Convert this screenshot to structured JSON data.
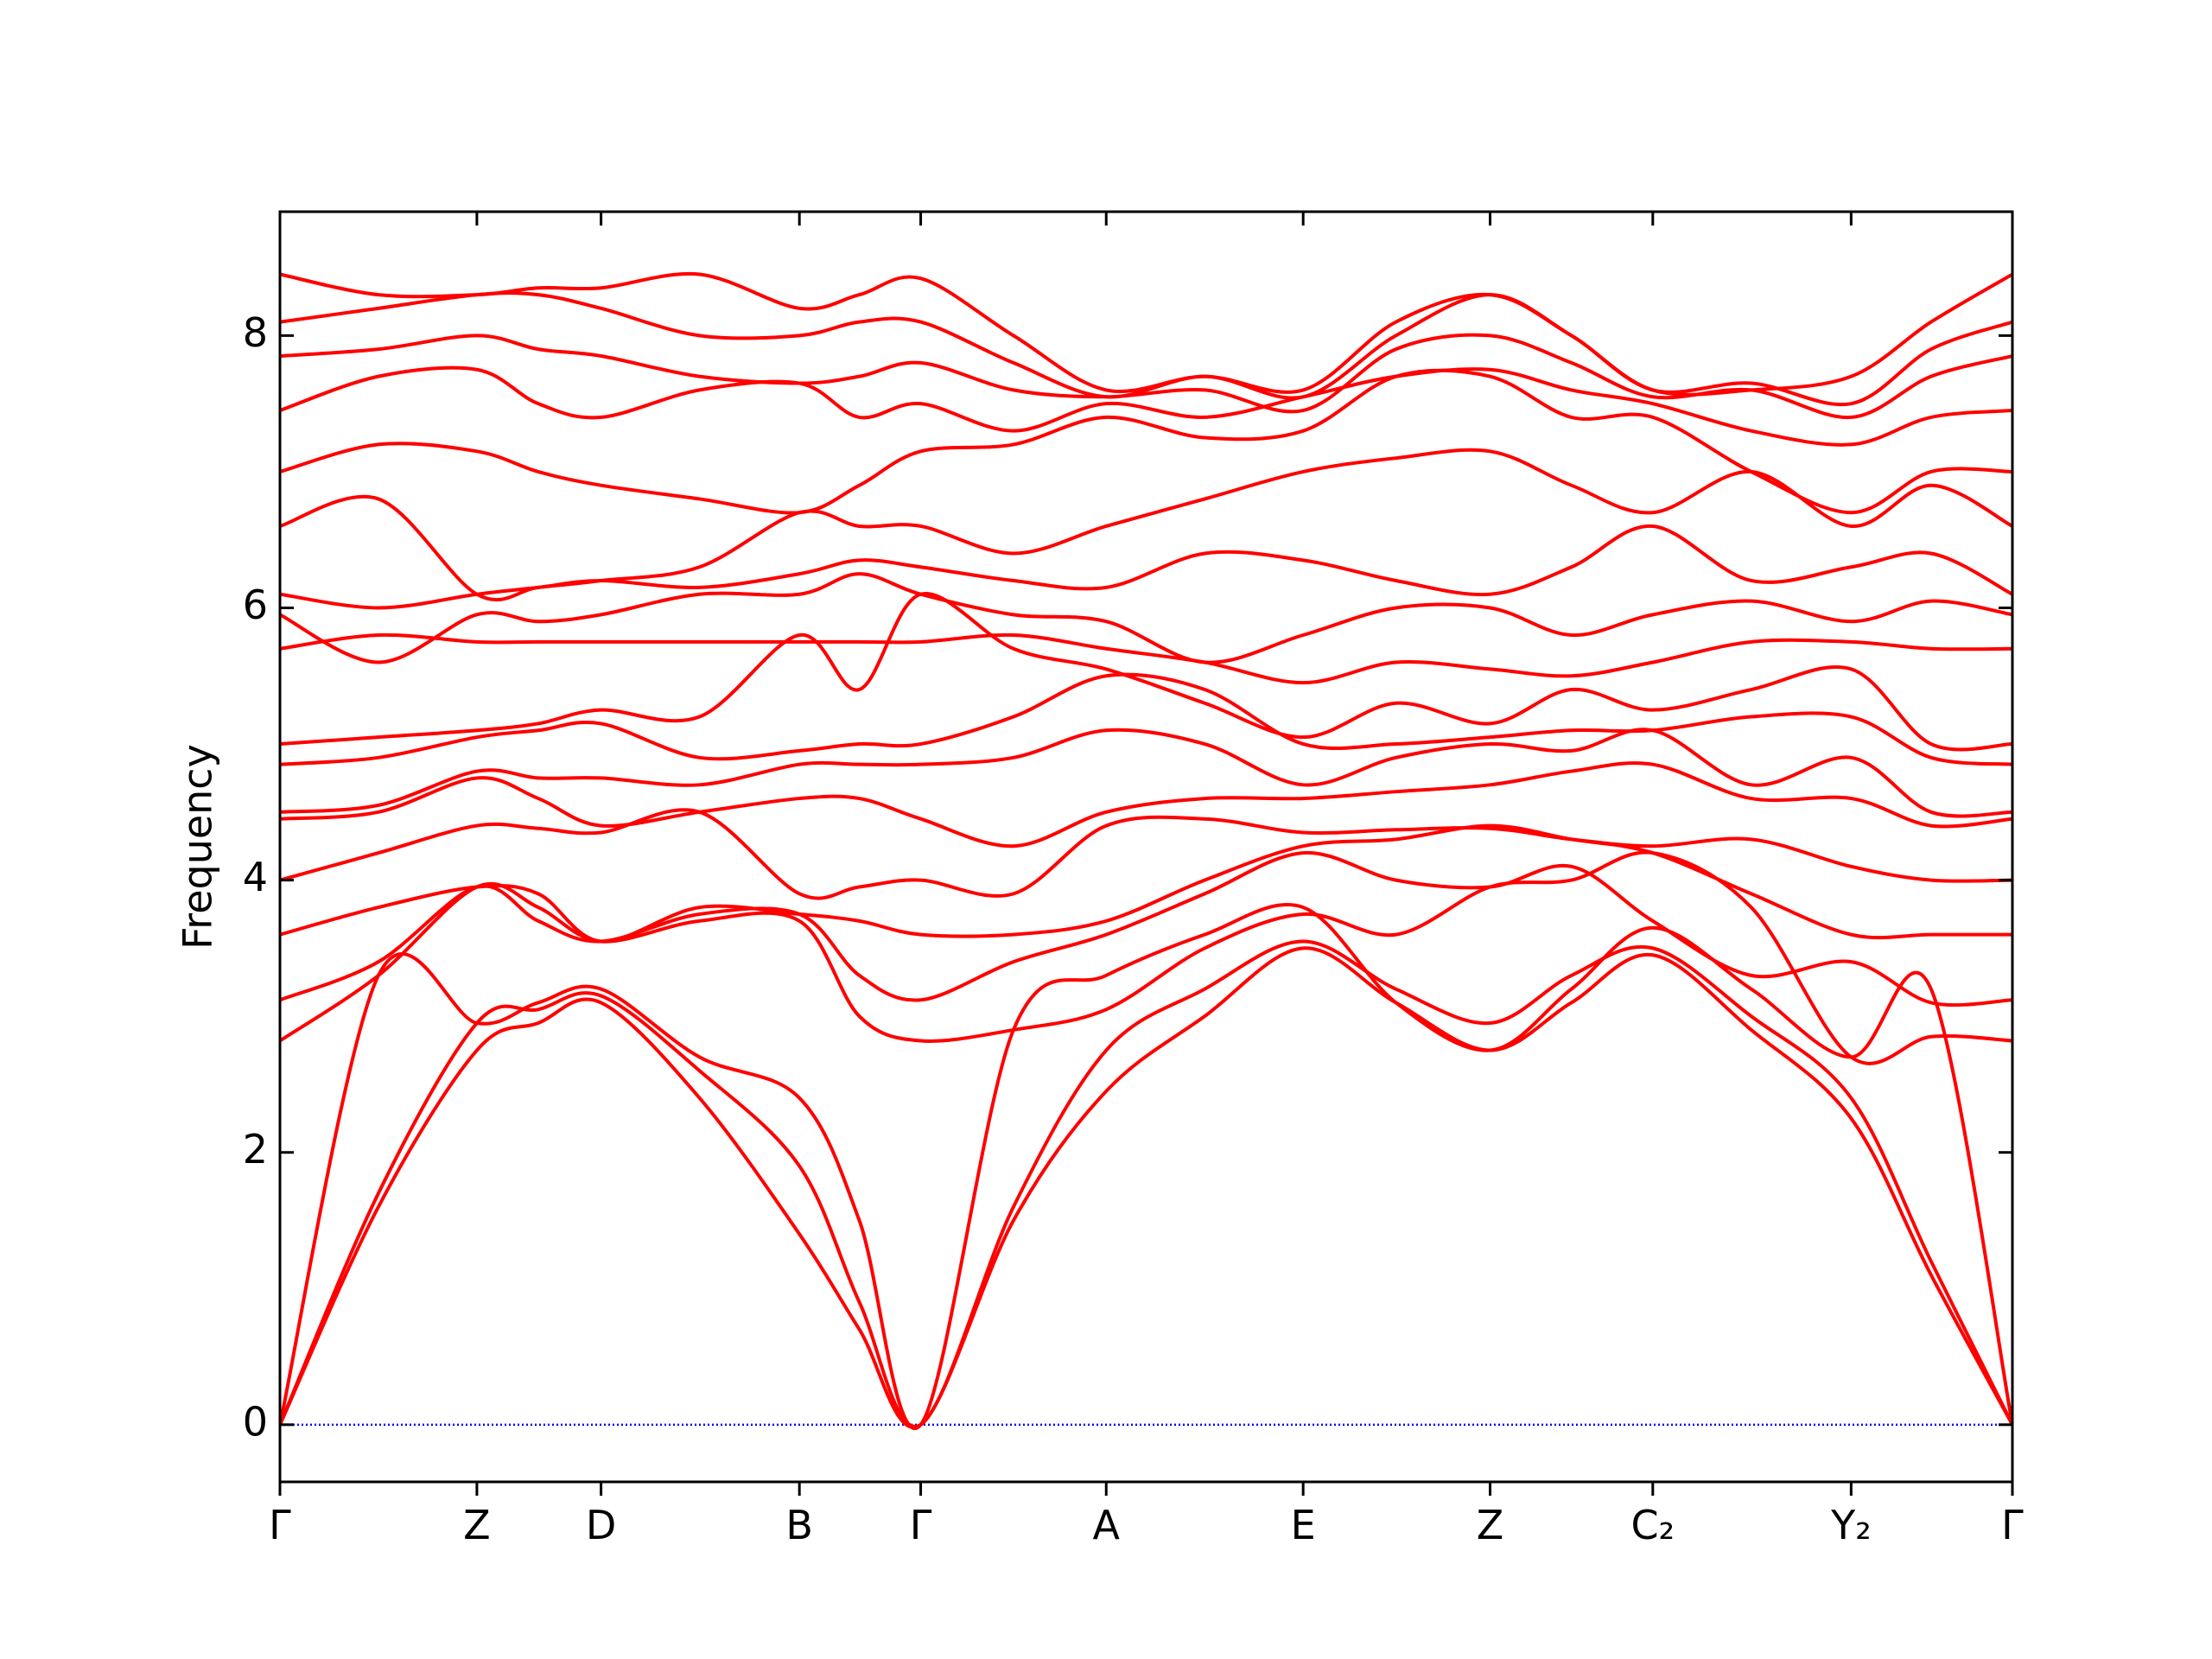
{
  "chart_data": {
    "type": "line",
    "ylabel": "Frequency",
    "color": "#ff0000",
    "legend": false,
    "grid": false,
    "hline": {
      "y": 0,
      "color": "#0000ff",
      "style": "dotted"
    },
    "xlim": [
      0,
      12.14
    ],
    "ylim": [
      -0.42,
      8.91
    ],
    "xticks": [
      {
        "value": 0,
        "label": "Γ"
      },
      {
        "value": 1.38,
        "label": "Z"
      },
      {
        "value": 2.25,
        "label": "D"
      },
      {
        "value": 3.64,
        "label": "B"
      },
      {
        "value": 4.49,
        "label": "Γ"
      },
      {
        "value": 5.79,
        "label": "A"
      },
      {
        "value": 7.17,
        "label": "E"
      },
      {
        "value": 8.48,
        "label": "Z"
      },
      {
        "value": 9.62,
        "label": "C₂"
      },
      {
        "value": 11.01,
        "label": "Y₂"
      },
      {
        "value": 12.14,
        "label": "Γ"
      }
    ],
    "yticks": [
      0,
      2,
      4,
      6,
      8
    ],
    "x": [
      0,
      0.69,
      1.38,
      1.81,
      2.25,
      2.94,
      3.64,
      4.06,
      4.49,
      5.14,
      5.79,
      6.48,
      7.17,
      7.82,
      8.48,
      9.05,
      9.62,
      10.31,
      11.01,
      11.57,
      12.14
    ],
    "series": [
      {
        "values": [
          0,
          1.6,
          2.75,
          2.95,
          3.1,
          2.4,
          1.4,
          0.7,
          0,
          1.5,
          2.45,
          3.0,
          3.5,
          3.1,
          2.75,
          3.1,
          3.45,
          2.9,
          2.25,
          1.1,
          0
        ]
      },
      {
        "values": [
          0,
          1.7,
          2.95,
          3.05,
          3.15,
          2.6,
          1.9,
          0.9,
          0,
          1.6,
          2.75,
          3.2,
          3.55,
          3.2,
          2.95,
          3.3,
          3.5,
          3.0,
          2.4,
          1.2,
          0
        ]
      },
      {
        "values": [
          0,
          3.3,
          2.95,
          3.1,
          3.2,
          2.7,
          2.4,
          1.5,
          0,
          2.9,
          3.3,
          3.6,
          3.8,
          3.1,
          2.75,
          3.2,
          3.65,
          3.2,
          2.7,
          3.2,
          0
        ]
      },
      {
        "values": [
          2.82,
          3.3,
          3.95,
          3.8,
          3.55,
          3.7,
          3.7,
          3.0,
          2.82,
          2.9,
          3.05,
          3.5,
          3.75,
          3.6,
          3.95,
          4.0,
          4.2,
          3.8,
          2.7,
          2.85,
          2.82
        ]
      },
      {
        "values": [
          3.12,
          3.4,
          3.95,
          3.7,
          3.55,
          3.75,
          3.75,
          3.3,
          3.12,
          3.4,
          3.6,
          3.9,
          4.2,
          4.0,
          3.95,
          4.1,
          3.7,
          3.3,
          3.4,
          3.1,
          3.12
        ]
      },
      {
        "values": [
          3.6,
          3.8,
          3.95,
          3.9,
          3.55,
          3.8,
          3.75,
          3.7,
          3.6,
          3.6,
          3.7,
          4.0,
          4.25,
          4.3,
          4.4,
          4.3,
          4.2,
          3.9,
          3.6,
          3.6,
          3.6
        ]
      },
      {
        "values": [
          4.0,
          4.2,
          4.4,
          4.38,
          4.35,
          4.5,
          3.9,
          3.95,
          4.0,
          3.9,
          4.4,
          4.45,
          4.35,
          4.37,
          4.38,
          4.3,
          4.25,
          4.3,
          4.1,
          4.0,
          4.0
        ]
      },
      {
        "values": [
          4.45,
          4.5,
          4.75,
          4.6,
          4.4,
          4.5,
          4.6,
          4.6,
          4.45,
          4.25,
          4.5,
          4.6,
          4.6,
          4.65,
          4.7,
          4.8,
          4.85,
          4.6,
          4.6,
          4.4,
          4.45
        ]
      },
      {
        "values": [
          4.5,
          4.55,
          4.8,
          4.75,
          4.75,
          4.7,
          4.85,
          4.85,
          4.85,
          4.9,
          5.1,
          5.0,
          4.7,
          4.9,
          5.0,
          4.95,
          5.1,
          4.7,
          4.9,
          4.5,
          4.5
        ]
      },
      {
        "values": [
          4.85,
          4.9,
          5.05,
          5.1,
          5.15,
          4.9,
          4.95,
          5.0,
          5.0,
          5.2,
          5.5,
          5.4,
          5.0,
          5.0,
          5.05,
          5.1,
          5.1,
          5.2,
          5.2,
          4.9,
          4.85
        ]
      },
      {
        "values": [
          5.0,
          5.05,
          5.1,
          5.15,
          5.25,
          5.2,
          5.8,
          5.4,
          6.1,
          5.7,
          5.55,
          5.3,
          5.05,
          5.3,
          5.15,
          5.4,
          5.25,
          5.4,
          5.55,
          5.0,
          5.0
        ]
      },
      {
        "values": [
          5.7,
          5.8,
          5.75,
          5.75,
          5.75,
          5.75,
          5.75,
          5.75,
          5.75,
          5.8,
          5.7,
          5.6,
          5.45,
          5.6,
          5.55,
          5.5,
          5.6,
          5.75,
          5.75,
          5.7,
          5.7
        ]
      },
      {
        "values": [
          5.95,
          5.6,
          5.95,
          5.9,
          5.95,
          6.1,
          6.1,
          6.25,
          6.1,
          5.95,
          5.9,
          5.6,
          5.8,
          6.0,
          6.0,
          5.8,
          5.95,
          6.05,
          5.9,
          6.05,
          5.95
        ]
      },
      {
        "values": [
          6.1,
          6.0,
          6.1,
          6.15,
          6.2,
          6.15,
          6.25,
          6.35,
          6.3,
          6.2,
          6.15,
          6.4,
          6.35,
          6.2,
          6.1,
          6.3,
          6.6,
          6.2,
          6.3,
          6.4,
          6.1
        ]
      },
      {
        "values": [
          6.6,
          6.8,
          6.1,
          6.15,
          6.2,
          6.3,
          6.7,
          6.6,
          6.6,
          6.4,
          6.6,
          6.8,
          7.0,
          7.1,
          7.15,
          6.9,
          6.7,
          7.0,
          6.6,
          6.9,
          6.6
        ]
      },
      {
        "values": [
          7.0,
          7.2,
          7.15,
          7.0,
          6.9,
          6.8,
          6.7,
          6.9,
          7.15,
          7.2,
          7.4,
          7.25,
          7.3,
          7.7,
          7.7,
          7.4,
          7.4,
          7.0,
          6.7,
          7.0,
          7.0
        ]
      },
      {
        "values": [
          7.45,
          7.7,
          7.75,
          7.5,
          7.4,
          7.6,
          7.65,
          7.4,
          7.5,
          7.3,
          7.5,
          7.4,
          7.55,
          7.7,
          7.75,
          7.6,
          7.5,
          7.3,
          7.2,
          7.4,
          7.45
        ]
      },
      {
        "values": [
          7.85,
          7.9,
          8.0,
          7.9,
          7.85,
          7.7,
          7.65,
          7.7,
          7.8,
          7.6,
          7.55,
          7.6,
          7.45,
          7.9,
          8.0,
          7.8,
          7.55,
          7.6,
          7.4,
          7.7,
          7.85
        ]
      },
      {
        "values": [
          8.1,
          8.2,
          8.3,
          8.3,
          8.2,
          8.0,
          8.0,
          8.1,
          8.1,
          7.8,
          7.55,
          7.7,
          7.55,
          8.0,
          8.3,
          8.0,
          7.6,
          7.65,
          7.5,
          7.9,
          8.1
        ]
      },
      {
        "values": [
          8.45,
          8.3,
          8.3,
          8.35,
          8.35,
          8.45,
          8.2,
          8.3,
          8.42,
          8.0,
          7.6,
          7.7,
          7.6,
          8.1,
          8.3,
          8.0,
          7.6,
          7.6,
          7.7,
          8.1,
          8.45
        ]
      }
    ]
  }
}
